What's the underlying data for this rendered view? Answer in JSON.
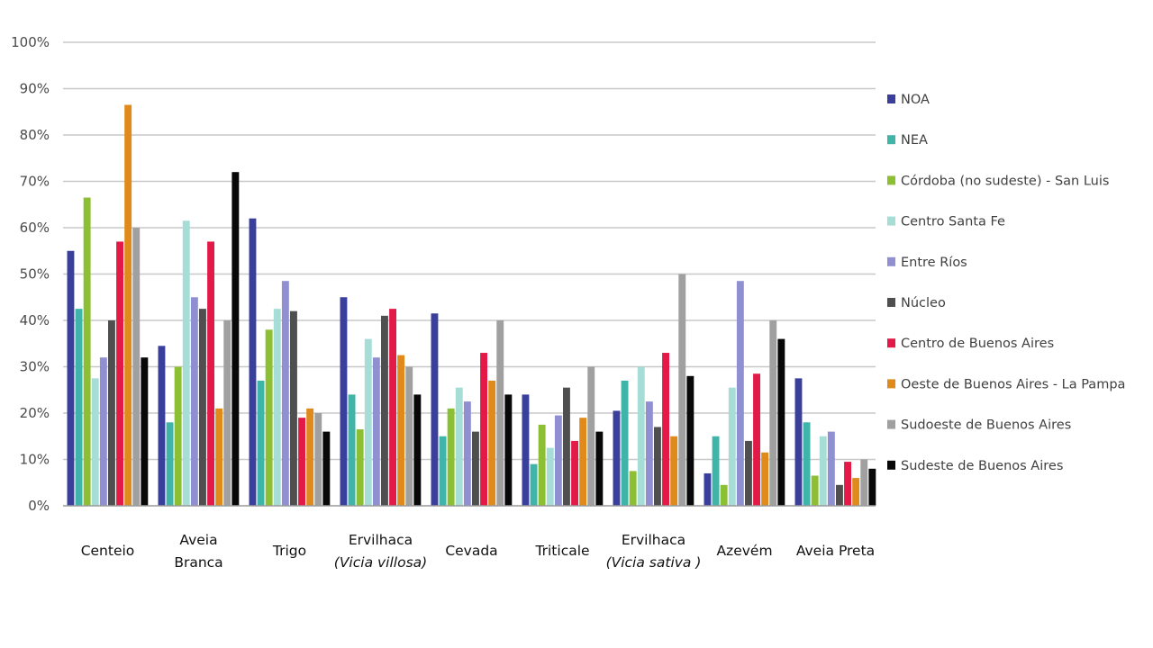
{
  "chart_data": {
    "type": "bar",
    "title": "",
    "xlabel": "",
    "ylabel": "",
    "ylim": [
      0,
      100
    ],
    "y_ticks": [
      "0%",
      "10%",
      "20%",
      "30%",
      "40%",
      "50%",
      "60%",
      "70%",
      "80%",
      "90%",
      "100%"
    ],
    "grid": true,
    "legend_position": "right",
    "categories": [
      {
        "line1": "Centeio",
        "line2": "",
        "italic2": false
      },
      {
        "line1": "Aveia",
        "line2": "Branca",
        "italic2": false
      },
      {
        "line1": "Trigo",
        "line2": "",
        "italic2": false
      },
      {
        "line1": "Ervilhaca",
        "line2": "(Vicia villosa)",
        "italic2": true
      },
      {
        "line1": "Cevada",
        "line2": "",
        "italic2": false
      },
      {
        "line1": "Triticale",
        "line2": "",
        "italic2": false
      },
      {
        "line1": "Ervilhaca",
        "line2": "(Vicia sativa )",
        "italic2": true
      },
      {
        "line1": "Azevém",
        "line2": "",
        "italic2": false
      },
      {
        "line1": "Aveia Preta",
        "line2": "",
        "italic2": false
      }
    ],
    "series": [
      {
        "name": "NOA",
        "color": "#3b3f9c",
        "values": [
          55,
          34.5,
          62,
          45,
          41.5,
          24,
          20.5,
          7,
          27.5
        ]
      },
      {
        "name": "NEA",
        "color": "#3fb4a8",
        "values": [
          42.5,
          18,
          27,
          24,
          15,
          9,
          27,
          15,
          18
        ]
      },
      {
        "name": "Córdoba (no sudeste) - San Luis",
        "color": "#8dbf35",
        "values": [
          66.5,
          30,
          38,
          16.5,
          21,
          17.5,
          7.5,
          4.5,
          6.5
        ]
      },
      {
        "name": "Centro Santa Fe",
        "color": "#a6ddd6",
        "values": [
          27.5,
          61.5,
          42.5,
          36,
          25.5,
          12.5,
          30,
          25.5,
          15
        ]
      },
      {
        "name": "Entre Ríos",
        "color": "#8f8fd1",
        "values": [
          32,
          45,
          48.5,
          32,
          22.5,
          19.5,
          22.5,
          48.5,
          16
        ]
      },
      {
        "name": "Núcleo",
        "color": "#4f4f4f",
        "values": [
          40,
          42.5,
          42,
          41,
          16,
          25.5,
          17,
          14,
          4.5
        ]
      },
      {
        "name": "Centro de Buenos Aires",
        "color": "#e31a47",
        "values": [
          57,
          57,
          19,
          42.5,
          33,
          14,
          33,
          28.5,
          9.5
        ]
      },
      {
        "name": "Oeste de Buenos Aires - La Pampa",
        "color": "#e08a1c",
        "values": [
          86.5,
          21,
          21,
          32.5,
          27,
          19,
          15,
          11.5,
          6
        ]
      },
      {
        "name": "Sudoeste de Buenos Aires",
        "color": "#a0a0a0",
        "values": [
          60,
          40,
          20,
          30,
          40,
          30,
          50,
          40,
          10
        ]
      },
      {
        "name": "Sudeste de Buenos Aires",
        "color": "#080808",
        "values": [
          32,
          72,
          16,
          24,
          24,
          16,
          28,
          36,
          8
        ]
      }
    ]
  }
}
